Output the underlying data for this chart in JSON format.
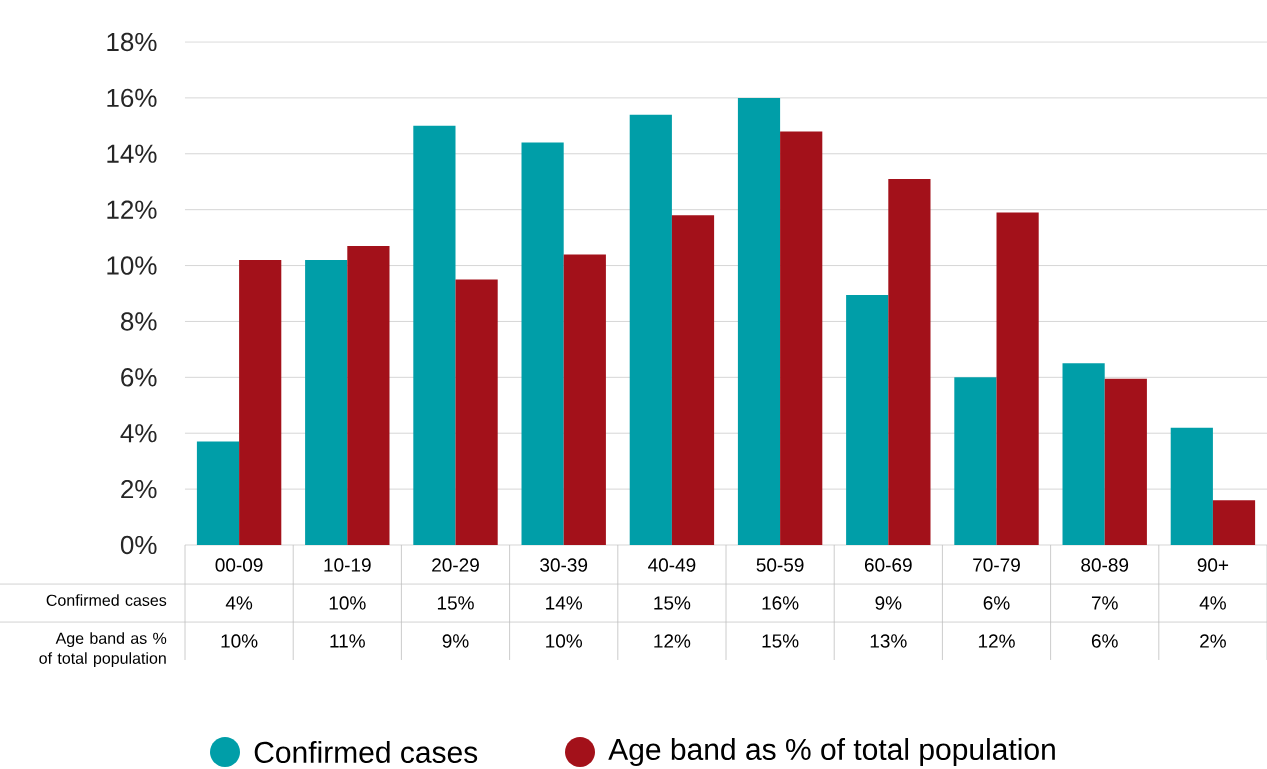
{
  "chart_data": {
    "type": "bar",
    "categories": [
      "00-09",
      "10-19",
      "20-29",
      "30-39",
      "40-49",
      "50-59",
      "60-69",
      "70-79",
      "80-89",
      "90+"
    ],
    "series": [
      {
        "name": "Confirmed cases",
        "color": "#009ea8",
        "values": [
          3.7,
          10.2,
          15.0,
          14.4,
          15.4,
          16.0,
          8.95,
          6.0,
          6.5,
          4.2
        ],
        "value_labels": [
          "4%",
          "10%",
          "15%",
          "14%",
          "15%",
          "16%",
          "9%",
          "6%",
          "7%",
          "4%"
        ]
      },
      {
        "name": "Age band as % of total population",
        "color": "#a3111a",
        "values": [
          10.2,
          10.7,
          9.5,
          10.4,
          11.8,
          14.8,
          13.1,
          11.9,
          5.95,
          1.6
        ],
        "value_labels": [
          "10%",
          "11%",
          "9%",
          "10%",
          "12%",
          "15%",
          "13%",
          "12%",
          "6%",
          "2%"
        ]
      }
    ],
    "ylim": [
      0,
      18
    ],
    "yticks": [
      {
        "value": 0,
        "label": "0%"
      },
      {
        "value": 2,
        "label": "2%"
      },
      {
        "value": 4,
        "label": "4%"
      },
      {
        "value": 6,
        "label": "6%"
      },
      {
        "value": 8,
        "label": "8%"
      },
      {
        "value": 10,
        "label": "10%"
      },
      {
        "value": 12,
        "label": "12%"
      },
      {
        "value": 14,
        "label": "14%"
      },
      {
        "value": 16,
        "label": "16%"
      },
      {
        "value": 18,
        "label": "18%"
      }
    ],
    "grid": "y",
    "legend": "bottom"
  }
}
